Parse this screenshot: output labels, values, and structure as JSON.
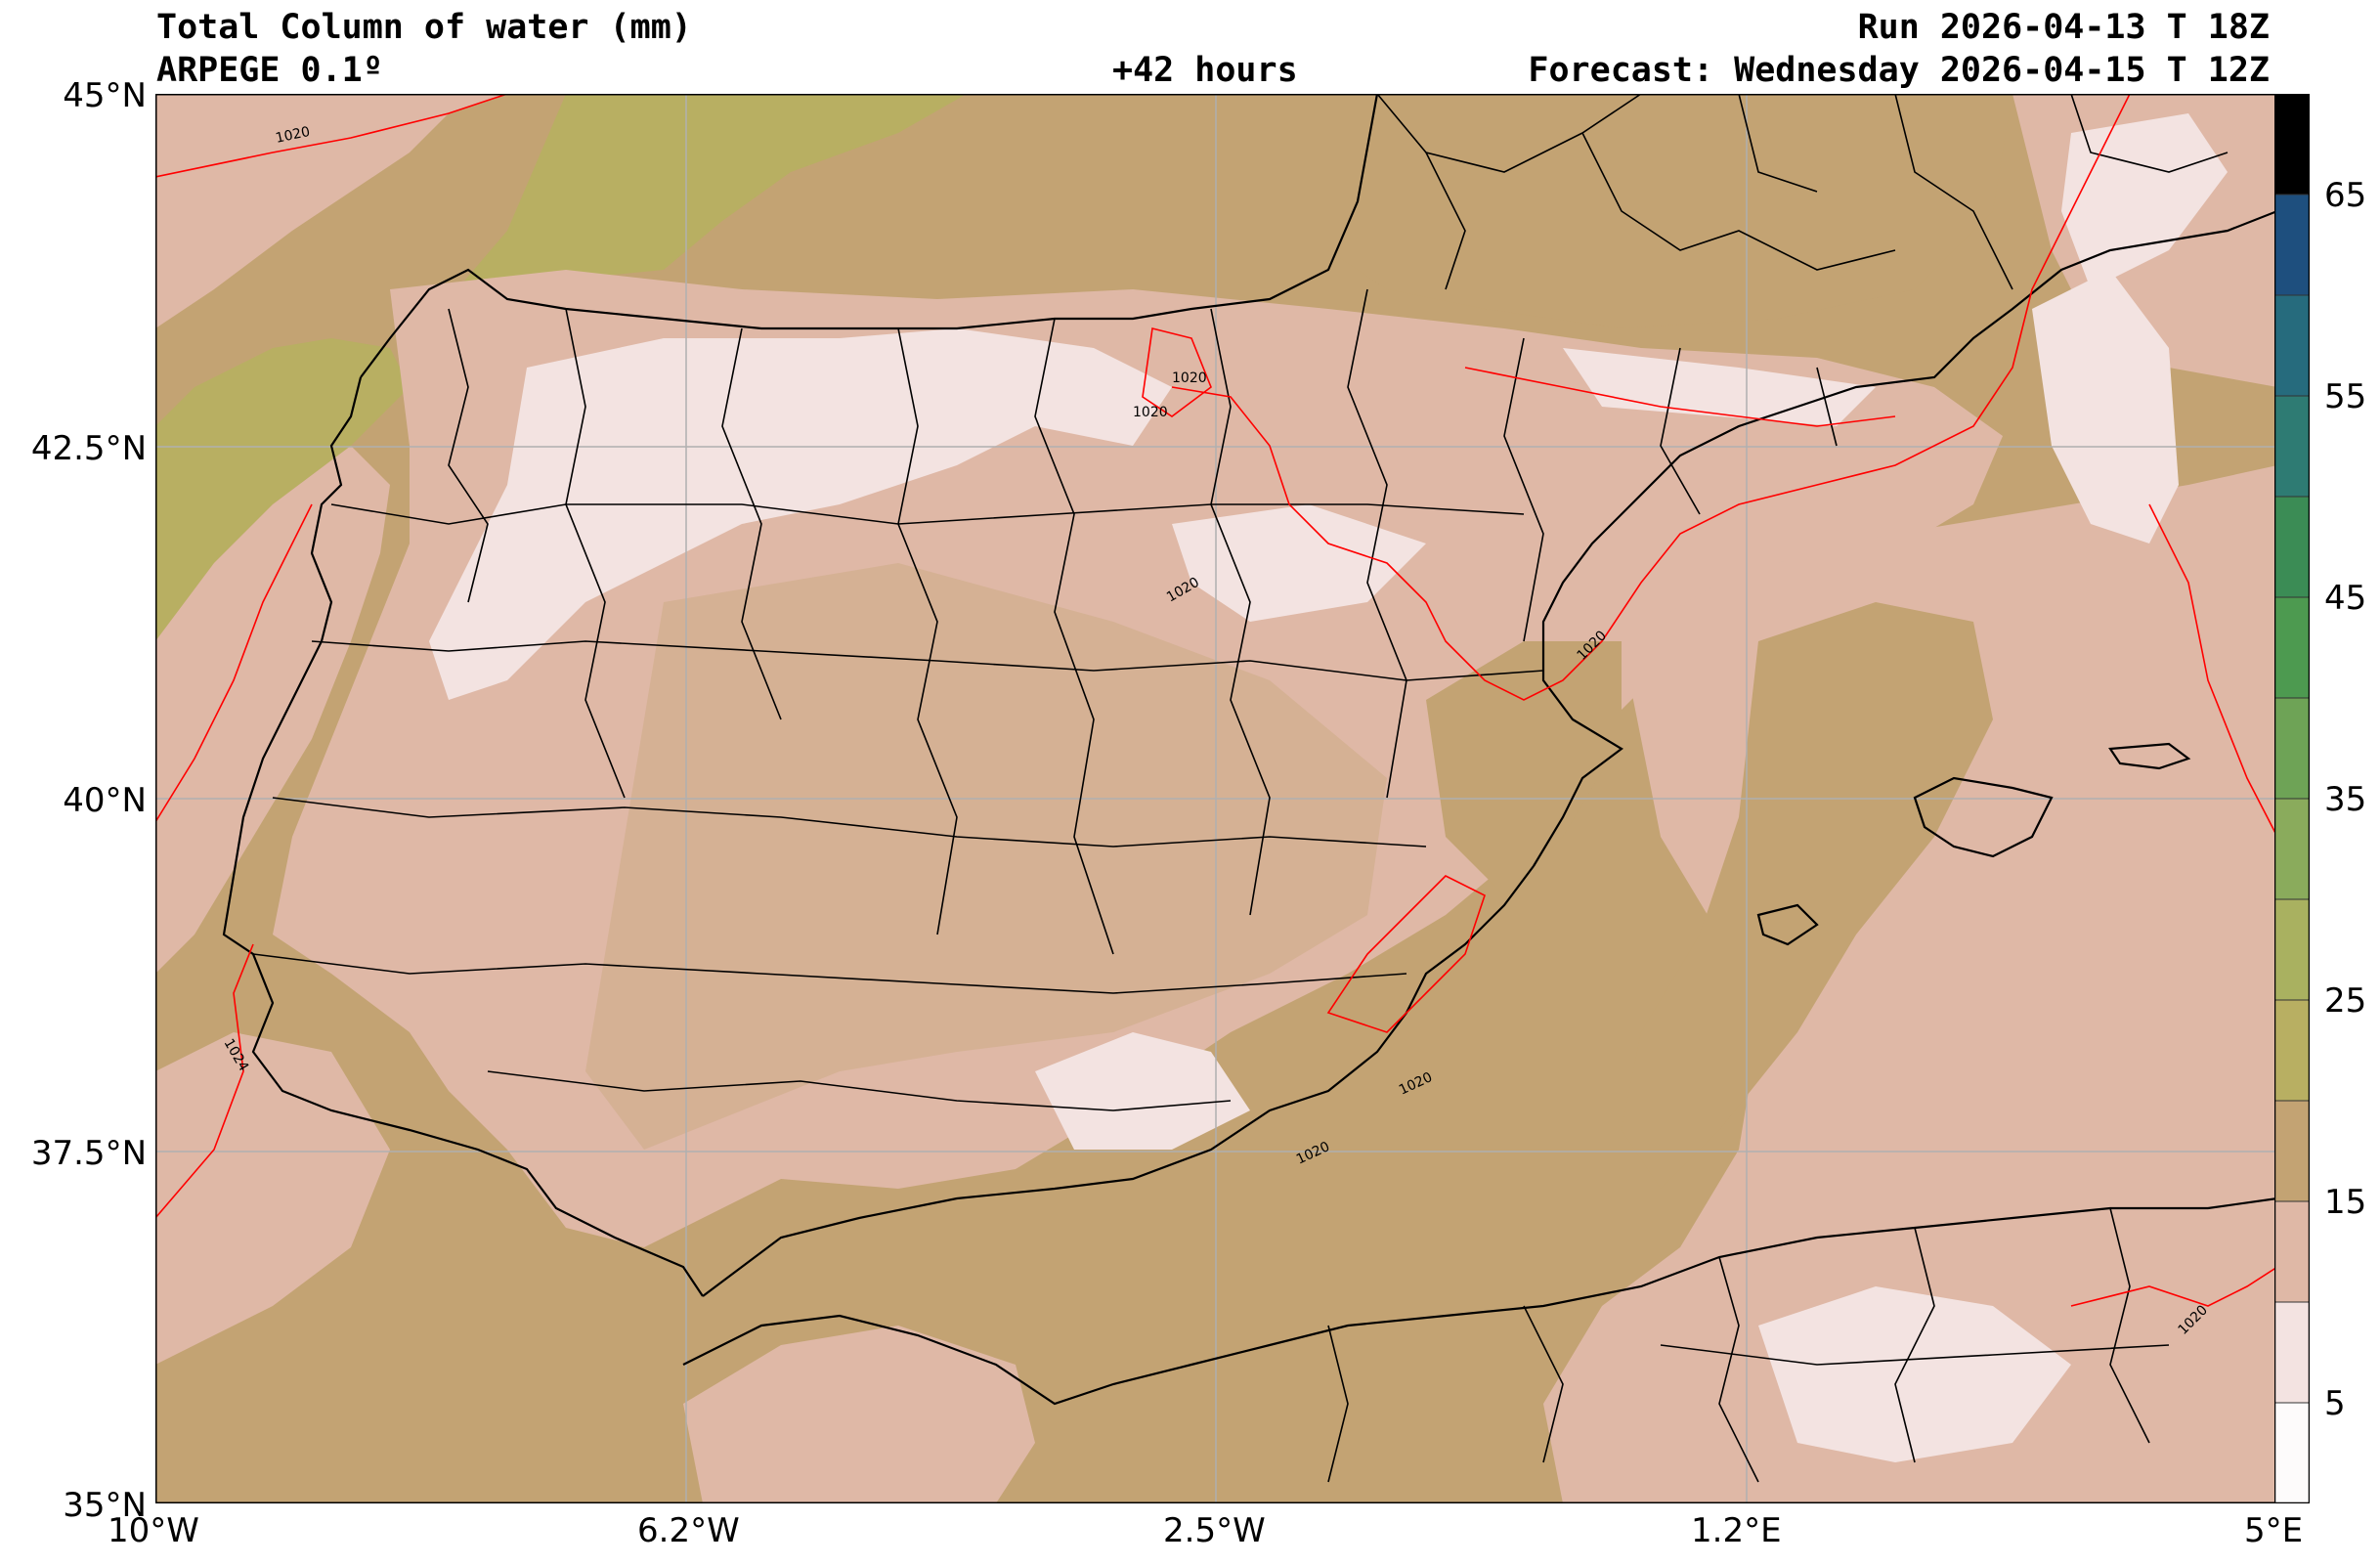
{
  "header": {
    "title": "Total Column of water (mm)",
    "model": "ARPEGE 0.1º",
    "lead": "+42 hours",
    "run": "Run 2026-04-13 T 18Z",
    "forecast": "Forecast: Wednesday 2026-04-15 T 12Z"
  },
  "axes": {
    "lat_labels": [
      "45°N",
      "42.5°N",
      "40°N",
      "37.5°N",
      "35°N"
    ],
    "lon_labels": [
      "10°W",
      "6.2°W",
      "2.5°W",
      "1.2°E",
      "5°E"
    ],
    "lon_range": [
      -10,
      5
    ],
    "lat_range": [
      35,
      45
    ],
    "grid": true
  },
  "colorbar": {
    "tick_labels": [
      "65",
      "55",
      "45",
      "35",
      "25",
      "15",
      "5"
    ],
    "range": [
      0,
      70
    ],
    "bands": [
      {
        "from": 0,
        "to": 5,
        "color": "#fdfbfb"
      },
      {
        "from": 5,
        "to": 10,
        "color": "#f3e3e1"
      },
      {
        "from": 10,
        "to": 15,
        "color": "#dfb8a6"
      },
      {
        "from": 15,
        "to": 20,
        "color": "#c3a373"
      },
      {
        "from": 20,
        "to": 25,
        "color": "#b8af62"
      },
      {
        "from": 25,
        "to": 30,
        "color": "#a9b160"
      },
      {
        "from": 30,
        "to": 35,
        "color": "#8aab5c"
      },
      {
        "from": 35,
        "to": 40,
        "color": "#6ea356"
      },
      {
        "from": 40,
        "to": 45,
        "color": "#4d9a50"
      },
      {
        "from": 45,
        "to": 50,
        "color": "#3b8c55"
      },
      {
        "from": 50,
        "to": 55,
        "color": "#2e7b73"
      },
      {
        "from": 55,
        "to": 60,
        "color": "#266b7d"
      },
      {
        "from": 60,
        "to": 65,
        "color": "#1e4f7e"
      },
      {
        "from": 65,
        "to": 70,
        "color": "#000000"
      }
    ]
  },
  "isobars": {
    "color": "#ff0000",
    "labels": [
      "1020",
      "1020",
      "1020",
      "1020",
      "1020",
      "1020",
      "1020",
      "1024",
      "1020"
    ]
  },
  "colors": {
    "land_coast": "#000000",
    "grid": "#b0b0b0"
  }
}
